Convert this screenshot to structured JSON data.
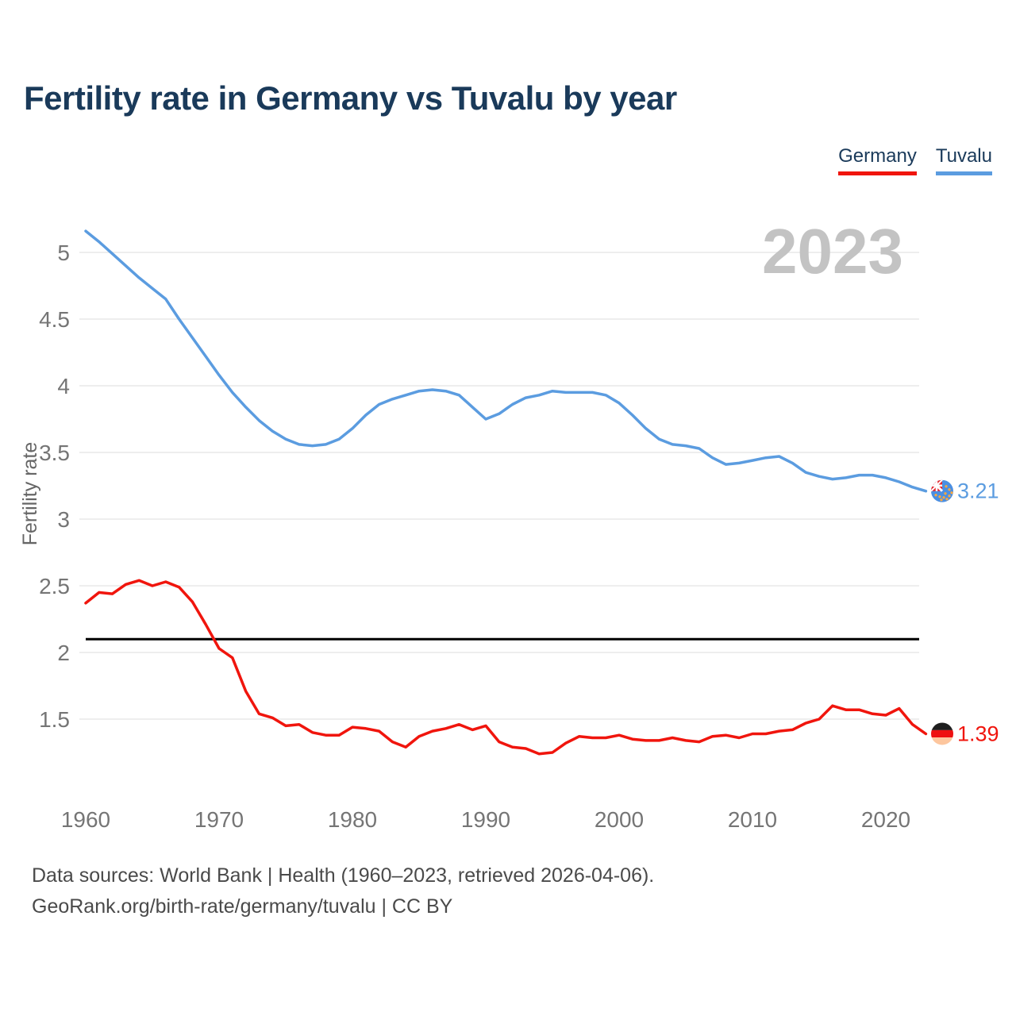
{
  "page": {
    "title": "Fertility rate in Germany vs Tuvalu by year",
    "footer_line1": "Data sources: World Bank | Health (1960–2023, retrieved 2026-04-06).",
    "footer_line2": "GeoRank.org/birth-rate/germany/tuvalu | CC BY"
  },
  "legend": {
    "items": [
      {
        "label": "Germany",
        "color": "#f0150d"
      },
      {
        "label": "Tuvalu",
        "color": "#5b9ce0"
      }
    ]
  },
  "colors": {
    "title": "#1a3a5a",
    "axis_text": "#757575",
    "axis_label": "#666666",
    "grid": "#e8e8e8",
    "watermark": "#c3c3c3",
    "footer": "#4a4a4a",
    "germany": "#f0150d",
    "tuvalu": "#5b9ce0",
    "reference_line": "#000000",
    "germany_flag": [
      "#1f1f1f",
      "#ee1111",
      "#fdc69e"
    ],
    "tuvalu_flag": [
      "#4b8fe2",
      "#ffffff",
      "#e8252b",
      "#ffa83d"
    ]
  },
  "chart_data": {
    "type": "line",
    "title": "Fertility rate in Germany vs Tuvalu by year",
    "ylabel": "Fertility rate",
    "xlabel": "",
    "xlim": [
      1960,
      2023
    ],
    "ylim": [
      1.15,
      5.3
    ],
    "grid": "horizontal",
    "legend_position": "top-right",
    "year_watermark": "2023",
    "y_ticks": [
      {
        "v": 1.5,
        "label": "1.5"
      },
      {
        "v": 2,
        "label": "2"
      },
      {
        "v": 2.5,
        "label": "2.5"
      },
      {
        "v": 3,
        "label": "3"
      },
      {
        "v": 3.5,
        "label": "3.5"
      },
      {
        "v": 4,
        "label": "4"
      },
      {
        "v": 4.5,
        "label": "4.5"
      },
      {
        "v": 5,
        "label": "5"
      }
    ],
    "x_ticks": [
      {
        "v": 1960,
        "label": "1960"
      },
      {
        "v": 1970,
        "label": "1970"
      },
      {
        "v": 1980,
        "label": "1980"
      },
      {
        "v": 1990,
        "label": "1990"
      },
      {
        "v": 2000,
        "label": "2000"
      },
      {
        "v": 2010,
        "label": "2010"
      },
      {
        "v": 2020,
        "label": "2020"
      }
    ],
    "reference_line": {
      "value": 2.1
    },
    "x": [
      1960,
      1961,
      1962,
      1963,
      1964,
      1965,
      1966,
      1967,
      1968,
      1969,
      1970,
      1971,
      1972,
      1973,
      1974,
      1975,
      1976,
      1977,
      1978,
      1979,
      1980,
      1981,
      1982,
      1983,
      1984,
      1985,
      1986,
      1987,
      1988,
      1989,
      1990,
      1991,
      1992,
      1993,
      1994,
      1995,
      1996,
      1997,
      1998,
      1999,
      2000,
      2001,
      2002,
      2003,
      2004,
      2005,
      2006,
      2007,
      2008,
      2009,
      2010,
      2011,
      2012,
      2013,
      2014,
      2015,
      2016,
      2017,
      2018,
      2019,
      2020,
      2021,
      2022,
      2023
    ],
    "series": [
      {
        "name": "Tuvalu",
        "color": "#5b9ce0",
        "end_label": "3.21",
        "flag": "tuvalu",
        "values": [
          5.16,
          5.08,
          4.99,
          4.9,
          4.81,
          4.73,
          4.65,
          4.5,
          4.36,
          4.22,
          4.08,
          3.95,
          3.84,
          3.74,
          3.66,
          3.6,
          3.56,
          3.55,
          3.56,
          3.6,
          3.68,
          3.78,
          3.86,
          3.9,
          3.93,
          3.96,
          3.97,
          3.96,
          3.93,
          3.84,
          3.75,
          3.79,
          3.86,
          3.91,
          3.93,
          3.96,
          3.95,
          3.95,
          3.95,
          3.93,
          3.87,
          3.78,
          3.68,
          3.6,
          3.56,
          3.55,
          3.53,
          3.46,
          3.41,
          3.42,
          3.44,
          3.46,
          3.47,
          3.42,
          3.35,
          3.32,
          3.3,
          3.31,
          3.33,
          3.33,
          3.31,
          3.28,
          3.24,
          3.21
        ]
      },
      {
        "name": "Germany",
        "color": "#f0150d",
        "end_label": "1.39",
        "flag": "germany",
        "values": [
          2.37,
          2.45,
          2.44,
          2.51,
          2.54,
          2.5,
          2.53,
          2.49,
          2.38,
          2.21,
          2.03,
          1.96,
          1.71,
          1.54,
          1.51,
          1.45,
          1.46,
          1.4,
          1.38,
          1.38,
          1.44,
          1.43,
          1.41,
          1.33,
          1.29,
          1.37,
          1.41,
          1.43,
          1.46,
          1.42,
          1.45,
          1.33,
          1.29,
          1.28,
          1.24,
          1.25,
          1.32,
          1.37,
          1.36,
          1.36,
          1.38,
          1.35,
          1.34,
          1.34,
          1.36,
          1.34,
          1.33,
          1.37,
          1.38,
          1.36,
          1.39,
          1.39,
          1.41,
          1.42,
          1.47,
          1.5,
          1.6,
          1.57,
          1.57,
          1.54,
          1.53,
          1.58,
          1.46,
          1.39
        ]
      }
    ]
  }
}
